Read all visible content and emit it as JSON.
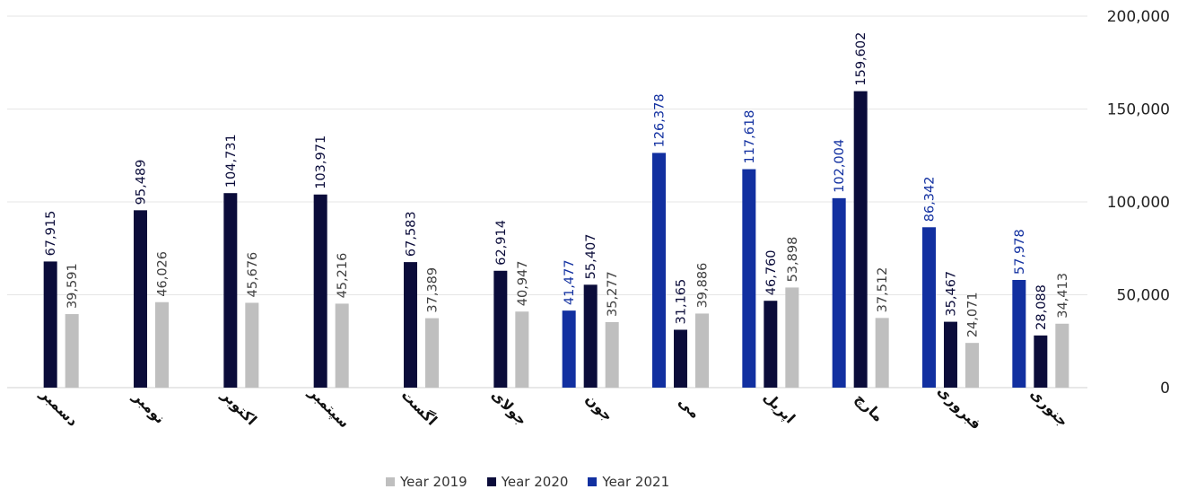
{
  "chart_data": {
    "type": "bar",
    "categories": [
      "جنوری",
      "فبروری",
      "مارچ",
      "اپریل",
      "می",
      "جون",
      "جولای",
      "اگست",
      "سپتمبر",
      "اکتوبر",
      "نومبر",
      "دسمبر"
    ],
    "series": [
      {
        "name": "Year 2021",
        "color": "#1230a0",
        "values": [
          57978,
          86342,
          102004,
          117618,
          126378,
          41477,
          null,
          null,
          null,
          null,
          null,
          null
        ]
      },
      {
        "name": "Year 2020",
        "color": "#0b0c3a",
        "values": [
          28088,
          35467,
          159602,
          46760,
          31165,
          55407,
          62914,
          67583,
          103971,
          104731,
          95489,
          67915
        ]
      },
      {
        "name": "Year 2019",
        "color": "#bfbfbf",
        "values": [
          34413,
          24071,
          37512,
          53898,
          39886,
          35277,
          40947,
          37389,
          45216,
          45676,
          46026,
          39591
        ]
      }
    ],
    "data_labels": {
      "Year 2021": [
        "57,978",
        "86,342",
        "102,004",
        "117,618",
        "126,378",
        "41,477",
        "",
        "",
        "",
        "",
        "",
        ""
      ],
      "Year 2020": [
        "28,088",
        "35,467",
        "159,602",
        "46,760",
        "31,165",
        "55,407",
        "62,914",
        "67,583",
        "103,971",
        "104,731",
        "95,489",
        "67,915"
      ],
      "Year 2019": [
        "34,413",
        "24,071",
        "37,512",
        "53,898",
        "39,886",
        "35,277",
        "40,947",
        "37,389",
        "45,216",
        "45,676",
        "46,026",
        "39,591"
      ]
    },
    "category_order": "right-to-left",
    "ylim": [
      0,
      200000
    ],
    "yticks": [
      0,
      50000,
      100000,
      150000,
      200000
    ],
    "ytick_labels": [
      "0",
      "50,000",
      "100,000",
      "150,000",
      "200,000"
    ],
    "y_axis_side": "right",
    "grid": true,
    "legend": {
      "position": "bottom",
      "entries": [
        "Year 2019",
        "Year 2020",
        "Year 2021"
      ],
      "colors": [
        "#bfbfbf",
        "#0b0c3a",
        "#1230a0"
      ]
    },
    "label_colors": {
      "Year 2021": "#1230a0",
      "Year 2020": "#0b0c3a",
      "Year 2019": "#404040"
    }
  }
}
